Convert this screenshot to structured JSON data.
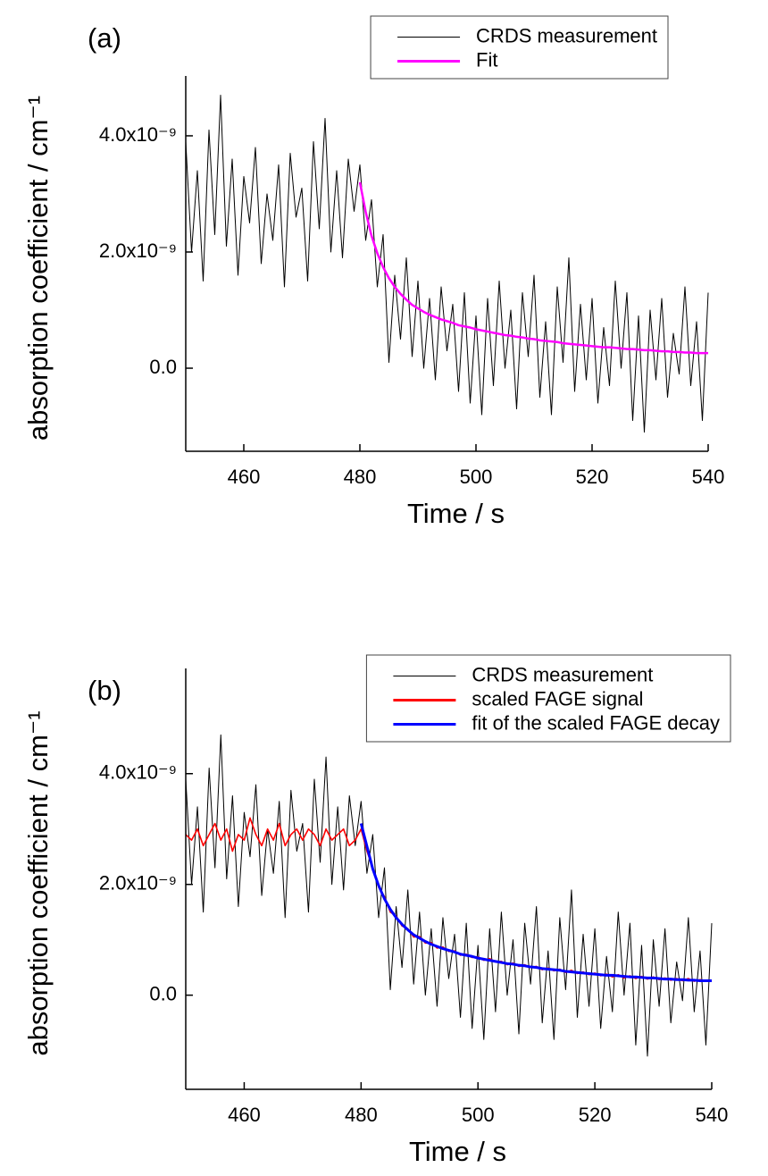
{
  "chart_data": [
    {
      "type": "line",
      "annotation": "(a)",
      "xlabel": "Time / s",
      "ylabel": "absorption coefficient / cm⁻¹",
      "x": [
        450,
        451,
        452,
        453,
        454,
        455,
        456,
        457,
        458,
        459,
        460,
        461,
        462,
        463,
        464,
        465,
        466,
        467,
        468,
        469,
        470,
        471,
        472,
        473,
        474,
        475,
        476,
        477,
        478,
        479,
        480,
        481,
        482,
        483,
        484,
        485,
        486,
        487,
        488,
        489,
        490,
        491,
        492,
        493,
        494,
        495,
        496,
        497,
        498,
        499,
        500,
        501,
        502,
        503,
        504,
        505,
        506,
        507,
        508,
        509,
        510,
        511,
        512,
        513,
        514,
        515,
        516,
        517,
        518,
        519,
        520,
        521,
        522,
        523,
        524,
        525,
        526,
        527,
        528,
        529,
        530,
        531,
        532,
        533,
        534,
        535,
        536,
        537,
        538,
        539,
        540
      ],
      "series": [
        {
          "name": "CRDS measurement",
          "color": "#000000",
          "values": [
            3.9e-09,
            2e-09,
            3.4e-09,
            1.5e-09,
            4.1e-09,
            2.3e-09,
            4.7e-09,
            2.1e-09,
            3.6e-09,
            1.6e-09,
            3.3e-09,
            2.5e-09,
            3.8e-09,
            1.8e-09,
            3e-09,
            2.2e-09,
            3.5e-09,
            1.4e-09,
            3.7e-09,
            2.6e-09,
            3.1e-09,
            1.5e-09,
            3.9e-09,
            2.4e-09,
            4.3e-09,
            2e-09,
            3.4e-09,
            1.9e-09,
            3.6e-09,
            2.7e-09,
            3.5e-09,
            2.2e-09,
            2.9e-09,
            1.4e-09,
            2.3e-09,
            1e-10,
            1.6e-09,
            5e-10,
            1.9e-09,
            2e-10,
            1.5e-09,
            0.0,
            1.2e-09,
            -2e-10,
            1.4e-09,
            3e-10,
            1.1e-09,
            -4e-10,
            1.3e-09,
            -6e-10,
            9e-10,
            -8e-10,
            1.2e-09,
            -3e-10,
            1.5e-09,
            0.0,
            1e-09,
            -7e-10,
            1.3e-09,
            2e-10,
            1.6e-09,
            -5e-10,
            8e-10,
            -8e-10,
            1.4e-09,
            1e-10,
            1.9e-09,
            -4e-10,
            1.1e-09,
            -2e-10,
            1.2e-09,
            -6e-10,
            7e-10,
            -3e-10,
            1.5e-09,
            0.0,
            1.3e-09,
            -9e-10,
            9e-10,
            -1.1e-09,
            1e-09,
            -2e-10,
            1.2e-09,
            -5e-10,
            6e-10,
            -1e-10,
            1.4e-09,
            -3e-10,
            8e-10,
            -9e-10,
            1.3e-09
          ]
        },
        {
          "name": "Fit",
          "color": "#ff00ff",
          "values": [
            null,
            null,
            null,
            null,
            null,
            null,
            null,
            null,
            null,
            null,
            null,
            null,
            null,
            null,
            null,
            null,
            null,
            null,
            null,
            null,
            null,
            null,
            null,
            null,
            null,
            null,
            null,
            null,
            null,
            null,
            3.2e-09,
            2.69e-09,
            2.28e-09,
            1.98e-09,
            1.74e-09,
            1.55e-09,
            1.4e-09,
            1.28e-09,
            1.18e-09,
            1.09e-09,
            1.03e-09,
            9.7e-10,
            9.2e-10,
            8.8e-10,
            8.4e-10,
            8.1e-10,
            7.8e-10,
            7.4e-10,
            7.2e-10,
            7e-10,
            6.7e-10,
            6.5e-10,
            6.3e-10,
            6.1e-10,
            5.9e-10,
            5.7e-10,
            5.6e-10,
            5.4e-10,
            5.3e-10,
            5.1e-10,
            5e-10,
            4.8e-10,
            4.7e-10,
            4.6e-10,
            4.5e-10,
            4.3e-10,
            4.2e-10,
            4.1e-10,
            4e-10,
            3.9e-10,
            3.8e-10,
            3.7e-10,
            3.6e-10,
            3.6e-10,
            3.5e-10,
            3.4e-10,
            3.3e-10,
            3.3e-10,
            3.2e-10,
            3.1e-10,
            3.1e-10,
            3e-10,
            2.9e-10,
            2.9e-10,
            2.8e-10,
            2.8e-10,
            2.7e-10,
            2.7e-10,
            2.6e-10,
            2.6e-10,
            2.6e-10
          ]
        }
      ],
      "xlim": [
        450,
        540
      ],
      "xticks": [
        460,
        480,
        500,
        520,
        540
      ],
      "ylim": [
        -1.43e-09,
        5.03e-09
      ],
      "yticks": [
        {
          "value": 0,
          "label": "0.0"
        },
        {
          "value": 2e-09,
          "label": "2.0x10⁻⁹"
        },
        {
          "value": 4e-09,
          "label": "4.0x10⁻⁹"
        }
      ],
      "legend": "upper right"
    },
    {
      "type": "line",
      "annotation": "(b)",
      "xlabel": "Time / s",
      "ylabel": "absorption coefficient / cm⁻¹",
      "x": [
        450,
        451,
        452,
        453,
        454,
        455,
        456,
        457,
        458,
        459,
        460,
        461,
        462,
        463,
        464,
        465,
        466,
        467,
        468,
        469,
        470,
        471,
        472,
        473,
        474,
        475,
        476,
        477,
        478,
        479,
        480,
        481,
        482,
        483,
        484,
        485,
        486,
        487,
        488,
        489,
        490,
        491,
        492,
        493,
        494,
        495,
        496,
        497,
        498,
        499,
        500,
        501,
        502,
        503,
        504,
        505,
        506,
        507,
        508,
        509,
        510,
        511,
        512,
        513,
        514,
        515,
        516,
        517,
        518,
        519,
        520,
        521,
        522,
        523,
        524,
        525,
        526,
        527,
        528,
        529,
        530,
        531,
        532,
        533,
        534,
        535,
        536,
        537,
        538,
        539,
        540
      ],
      "series": [
        {
          "name": "CRDS measurement",
          "color": "#000000",
          "values": [
            3.9e-09,
            2e-09,
            3.4e-09,
            1.5e-09,
            4.1e-09,
            2.3e-09,
            4.7e-09,
            2.1e-09,
            3.6e-09,
            1.6e-09,
            3.3e-09,
            2.5e-09,
            3.8e-09,
            1.8e-09,
            3e-09,
            2.2e-09,
            3.5e-09,
            1.4e-09,
            3.7e-09,
            2.6e-09,
            3.1e-09,
            1.5e-09,
            3.9e-09,
            2.4e-09,
            4.3e-09,
            2e-09,
            3.4e-09,
            1.9e-09,
            3.6e-09,
            2.7e-09,
            3.5e-09,
            2.2e-09,
            2.9e-09,
            1.4e-09,
            2.3e-09,
            1e-10,
            1.6e-09,
            5e-10,
            1.9e-09,
            2e-10,
            1.5e-09,
            0.0,
            1.2e-09,
            -2e-10,
            1.4e-09,
            3e-10,
            1.1e-09,
            -4e-10,
            1.3e-09,
            -6e-10,
            9e-10,
            -8e-10,
            1.2e-09,
            -3e-10,
            1.5e-09,
            0.0,
            1e-09,
            -7e-10,
            1.3e-09,
            2e-10,
            1.6e-09,
            -5e-10,
            8e-10,
            -8e-10,
            1.4e-09,
            1e-10,
            1.9e-09,
            -4e-10,
            1.1e-09,
            -2e-10,
            1.2e-09,
            -6e-10,
            7e-10,
            -3e-10,
            1.5e-09,
            0.0,
            1.3e-09,
            -9e-10,
            9e-10,
            -1.1e-09,
            1e-09,
            -2e-10,
            1.2e-09,
            -5e-10,
            6e-10,
            -1e-10,
            1.4e-09,
            -3e-10,
            8e-10,
            -9e-10,
            1.3e-09
          ]
        },
        {
          "name": "scaled FAGE signal",
          "color": "#ff0000",
          "values": [
            2.9e-09,
            2.8e-09,
            3e-09,
            2.7e-09,
            2.9e-09,
            3.1e-09,
            2.8e-09,
            3e-09,
            2.6e-09,
            2.9e-09,
            2.8e-09,
            3.2e-09,
            2.9e-09,
            2.7e-09,
            3e-09,
            2.8e-09,
            3.1e-09,
            2.7e-09,
            2.9e-09,
            3e-09,
            2.8e-09,
            3e-09,
            2.9e-09,
            2.7e-09,
            3e-09,
            2.8e-09,
            2.9e-09,
            3e-09,
            2.7e-09,
            2.8e-09,
            3e-09,
            2.6e-09,
            2.3e-09,
            1.95e-09,
            1.78e-09,
            1.5e-09,
            1.43e-09,
            1.25e-09,
            1.2e-09,
            1.05e-09,
            1.06e-09,
            9.4e-10,
            9.5e-10,
            8.5e-10,
            8.7e-10,
            7.9e-10,
            8e-10,
            7.2e-10,
            7.4e-10,
            6.8e-10,
            6.9e-10,
            6.3e-10,
            6.6e-10,
            6e-10,
            6.1e-10,
            5.5e-10,
            5.8e-10,
            5.2e-10,
            5.5e-10,
            5e-10,
            5.2e-10,
            4.6e-10,
            4.9e-10,
            4.4e-10,
            4.7e-10,
            4.1e-10,
            4.5e-10,
            3.9e-10,
            4.2e-10,
            3.7e-10,
            4e-10,
            3.5e-10,
            3.8e-10,
            3.3e-10,
            3.7e-10,
            3.1e-10,
            3.5e-10,
            3e-10,
            3.4e-10,
            2.9e-10,
            3.3e-10,
            2.8e-10,
            3.1e-10,
            2.7e-10,
            3e-10,
            2.6e-10,
            3e-10,
            2.5e-10,
            2.8e-10,
            2.6e-10,
            2.7e-10
          ]
        },
        {
          "name": "fit of the scaled FAGE decay",
          "color": "#0000ff",
          "values": [
            null,
            null,
            null,
            null,
            null,
            null,
            null,
            null,
            null,
            null,
            null,
            null,
            null,
            null,
            null,
            null,
            null,
            null,
            null,
            null,
            null,
            null,
            null,
            null,
            null,
            null,
            null,
            null,
            null,
            null,
            3.1e-09,
            2.69e-09,
            2.28e-09,
            1.98e-09,
            1.74e-09,
            1.55e-09,
            1.4e-09,
            1.28e-09,
            1.18e-09,
            1.09e-09,
            1.03e-09,
            9.7e-10,
            9.2e-10,
            8.8e-10,
            8.4e-10,
            8.1e-10,
            7.8e-10,
            7.4e-10,
            7.2e-10,
            7e-10,
            6.7e-10,
            6.5e-10,
            6.3e-10,
            6.1e-10,
            5.9e-10,
            5.7e-10,
            5.6e-10,
            5.4e-10,
            5.3e-10,
            5.1e-10,
            5e-10,
            4.8e-10,
            4.7e-10,
            4.6e-10,
            4.5e-10,
            4.3e-10,
            4.2e-10,
            4.1e-10,
            4e-10,
            3.9e-10,
            3.8e-10,
            3.7e-10,
            3.6e-10,
            3.6e-10,
            3.5e-10,
            3.4e-10,
            3.3e-10,
            3.3e-10,
            3.2e-10,
            3.1e-10,
            3.1e-10,
            3e-10,
            2.9e-10,
            2.9e-10,
            2.8e-10,
            2.8e-10,
            2.7e-10,
            2.7e-10,
            2.6e-10,
            2.6e-10,
            2.6e-10
          ]
        }
      ],
      "xlim": [
        450,
        540
      ],
      "xticks": [
        460,
        480,
        500,
        520,
        540
      ],
      "ylim": [
        -1.7e-09,
        5.9e-09
      ],
      "yticks": [
        {
          "value": 0,
          "label": "0.0"
        },
        {
          "value": 2e-09,
          "label": "2.0x10⁻⁹"
        },
        {
          "value": 4e-09,
          "label": "4.0x10⁻⁹"
        }
      ],
      "legend": "upper right"
    }
  ]
}
